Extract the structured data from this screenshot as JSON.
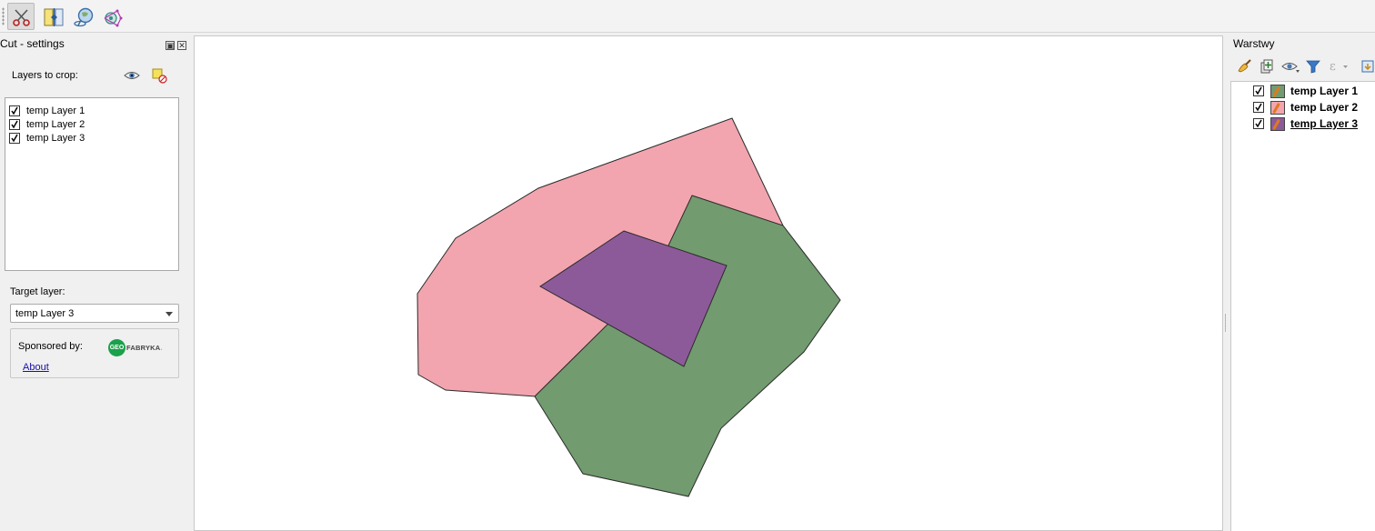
{
  "toolbar": {
    "buttons": [
      {
        "icon": "scissors-cut-icon",
        "active": true
      },
      {
        "icon": "split-layer-icon",
        "active": false
      },
      {
        "icon": "map-identify-icon",
        "active": false
      },
      {
        "icon": "vertex-tool-icon",
        "active": false
      }
    ]
  },
  "left_panel": {
    "title": "Cut - settings",
    "layers_label": "Layers to crop:",
    "layers": [
      {
        "label": "temp Layer 1",
        "checked": true
      },
      {
        "label": "temp Layer 2",
        "checked": true
      },
      {
        "label": "temp Layer 3",
        "checked": true
      }
    ],
    "target_label": "Target layer:",
    "target_value": "temp Layer 3",
    "sponsor_label": "Sponsored by:",
    "about_link": "About",
    "logo": {
      "circle_text": "GEO",
      "text": "FABRYKA",
      "dot": ".",
      "color": "#1aa14a"
    }
  },
  "map": {
    "layers": [
      {
        "name": "temp Layer 1",
        "fill": "#729b6f"
      },
      {
        "name": "temp Layer 2",
        "fill": "#f2a5af"
      },
      {
        "name": "temp Layer 3",
        "fill": "#8d5a99"
      }
    ],
    "background": "#ffffff"
  },
  "right_panel": {
    "title": "Warstwy",
    "tools": [
      "style-brush-icon",
      "add-group-icon",
      "visibility-eye-icon",
      "filter-icon",
      "expression-filter-icon",
      "collapse-icon"
    ],
    "layers": [
      {
        "label": "temp Layer 1",
        "checked": true,
        "color": "#729b6f",
        "current": false
      },
      {
        "label": "temp Layer 2",
        "checked": true,
        "color": "#f2a5af",
        "current": false
      },
      {
        "label": "temp Layer 3",
        "checked": true,
        "color": "#8d5a99",
        "current": true
      }
    ]
  }
}
